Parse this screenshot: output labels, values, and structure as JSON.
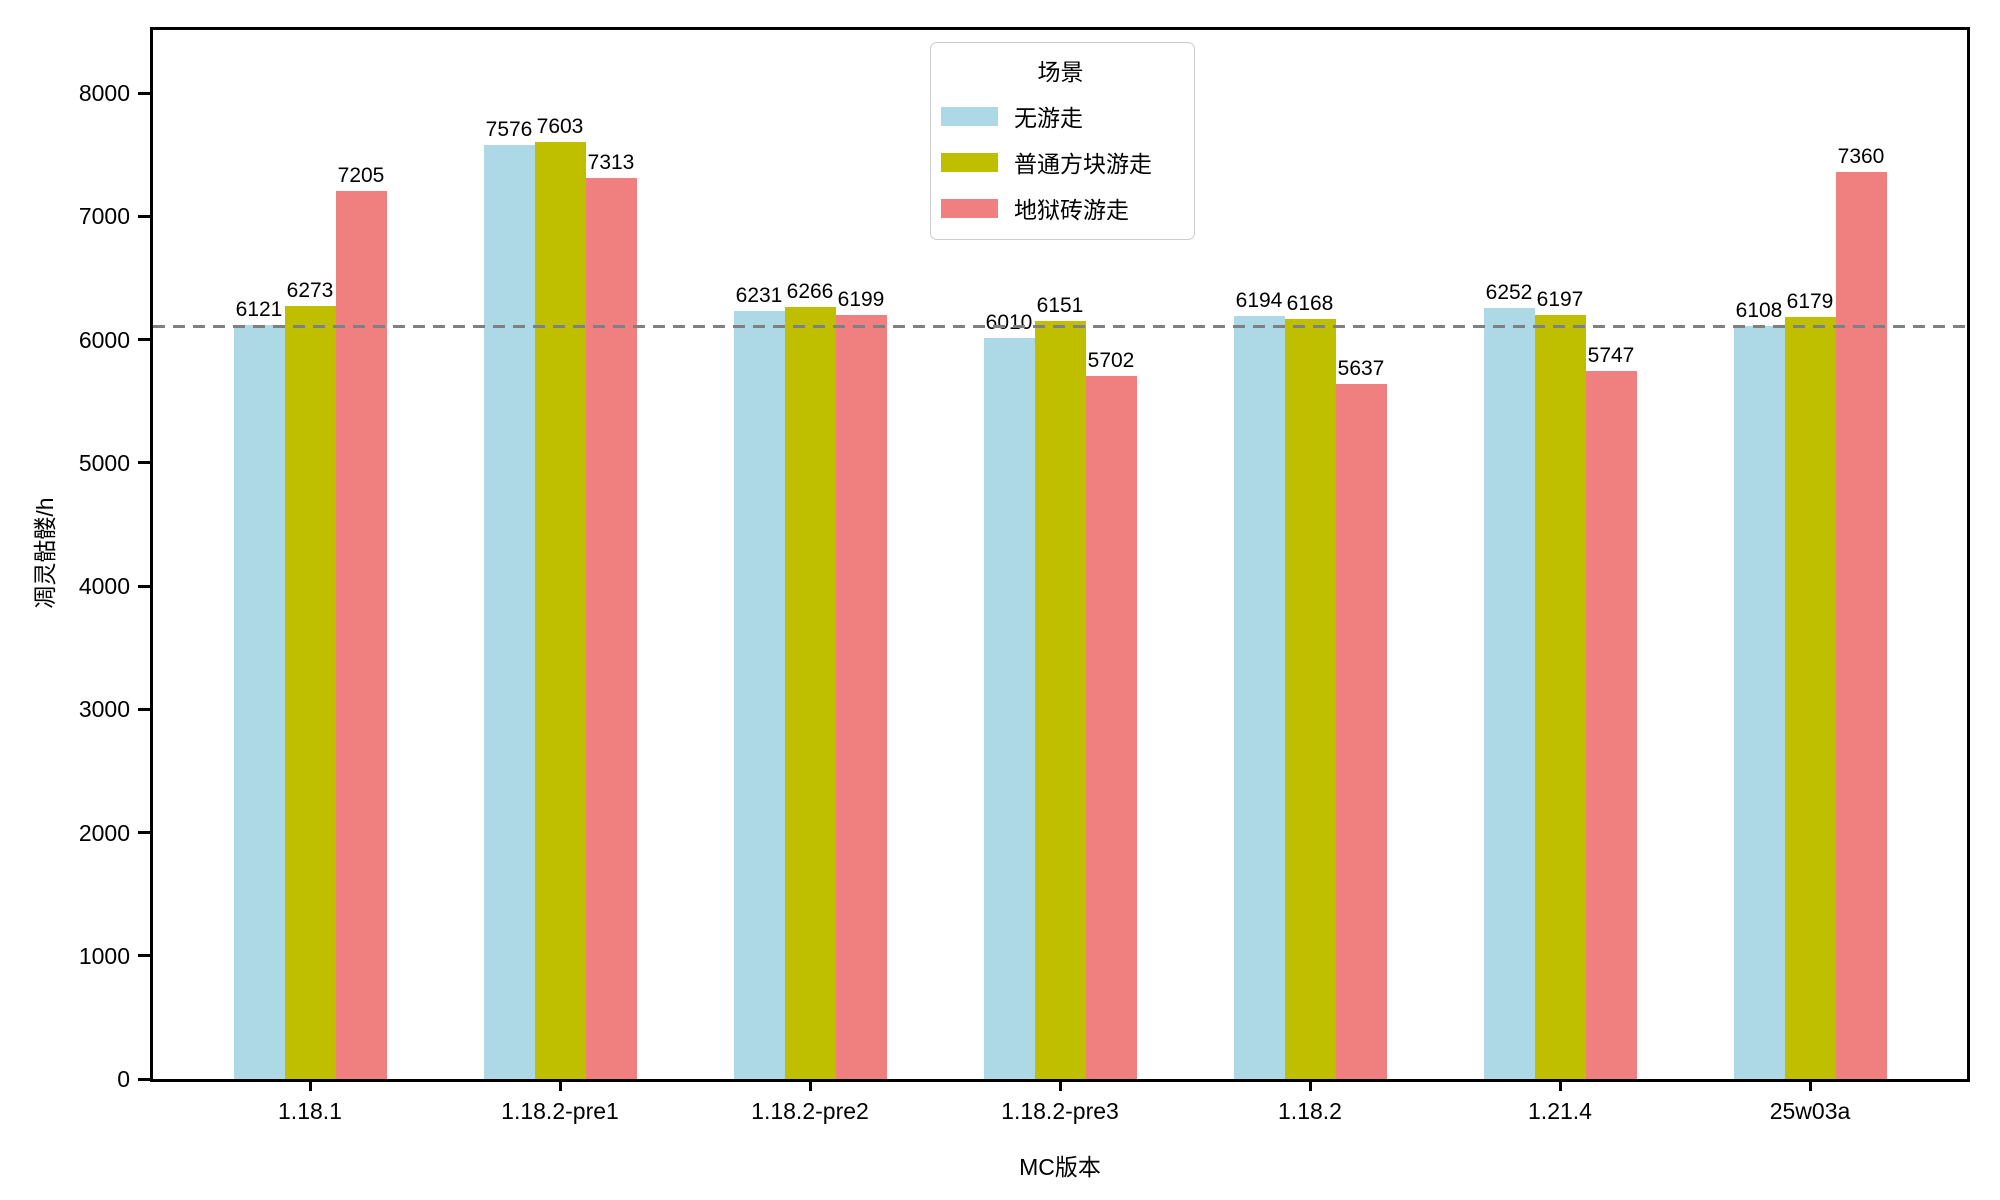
{
  "figure": {
    "background": "#FFFFFF",
    "frame_color": "#000000"
  },
  "chart_data": {
    "type": "bar",
    "title": "",
    "xlabel": "MC版本",
    "ylabel": "凋灵骷髅/h",
    "categories": [
      "1.18.1",
      "1.18.2-pre1",
      "1.18.2-pre2",
      "1.18.2-pre3",
      "1.18.2",
      "1.21.4",
      "25w03a"
    ],
    "series": [
      {
        "name": "无游走",
        "color": "#ADD8E6",
        "values": [
          6121,
          7576,
          6231,
          6010,
          6194,
          6252,
          6108
        ]
      },
      {
        "name": "普通方块游走",
        "color": "#BFBF00",
        "values": [
          6273,
          7603,
          6266,
          6151,
          6168,
          6197,
          6179
        ]
      },
      {
        "name": "地狱砖游走",
        "color": "#F08080",
        "values": [
          7205,
          7313,
          6199,
          5702,
          5637,
          5747,
          7360
        ]
      }
    ],
    "bar_value_labels_shown": true,
    "legend": {
      "title": "场景",
      "position": "upper-center"
    },
    "y_ticks": [
      0,
      1000,
      2000,
      3000,
      4000,
      5000,
      6000,
      7000,
      8000
    ],
    "ylim": [
      0,
      8511
    ],
    "grid": false,
    "reference_line": {
      "value": 6108,
      "style": "dashed",
      "color": "#7F8082"
    }
  }
}
